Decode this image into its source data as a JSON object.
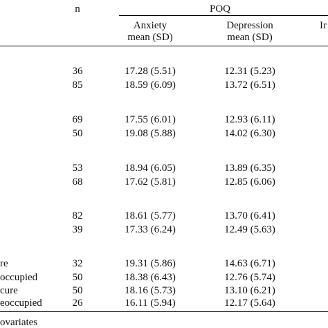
{
  "header": {
    "n_label": "n",
    "group_label": "POQ",
    "col_anxiety_line1": "Anxiety",
    "col_anxiety_line2": "mean (SD)",
    "col_depression_line1": "Depression",
    "col_depression_line2": "mean (SD)",
    "col_partial": "Ir"
  },
  "rows": [
    {
      "label": "",
      "n": "36",
      "anxiety": "17.28 (5.51)",
      "depression": "12.31 (5.23)"
    },
    {
      "label": "",
      "n": "85",
      "anxiety": "18.59 (6.09)",
      "depression": "13.72 (6.51)"
    },
    {
      "label": "",
      "n": "69",
      "anxiety": "17.55 (6.01)",
      "depression": "12.93 (6.11)"
    },
    {
      "label": "",
      "n": "50",
      "anxiety": "19.08 (5.88)",
      "depression": "14.02 (6.30)"
    },
    {
      "label": "",
      "n": "53",
      "anxiety": "18.94 (6.05)",
      "depression": "13.89 (6.35)"
    },
    {
      "label": "",
      "n": "68",
      "anxiety": "17.62 (5.81)",
      "depression": "12.85 (6.06)"
    },
    {
      "label": "",
      "n": "82",
      "anxiety": "18.61 (5.77)",
      "depression": "13.70 (6.41)"
    },
    {
      "label": "",
      "n": "39",
      "anxiety": "17.33 (6.24)",
      "depression": "12.49 (5.63)"
    },
    {
      "label": "re",
      "n": "32",
      "anxiety": "19.31 (5.86)",
      "depression": "14.63 (6.71)"
    },
    {
      "label": "occupied",
      "n": "50",
      "anxiety": "18.38 (6.43)",
      "depression": "12.76 (5.74)"
    },
    {
      "label": "cure",
      "n": "50",
      "anxiety": "18.16 (5.73)",
      "depression": "13.10 (6.21)"
    },
    {
      "label": "eoccupied",
      "n": "26",
      "anxiety": "16.11 (5.94)",
      "depression": "12.17 (5.64)"
    }
  ],
  "footer": {
    "note": "ovariates"
  }
}
